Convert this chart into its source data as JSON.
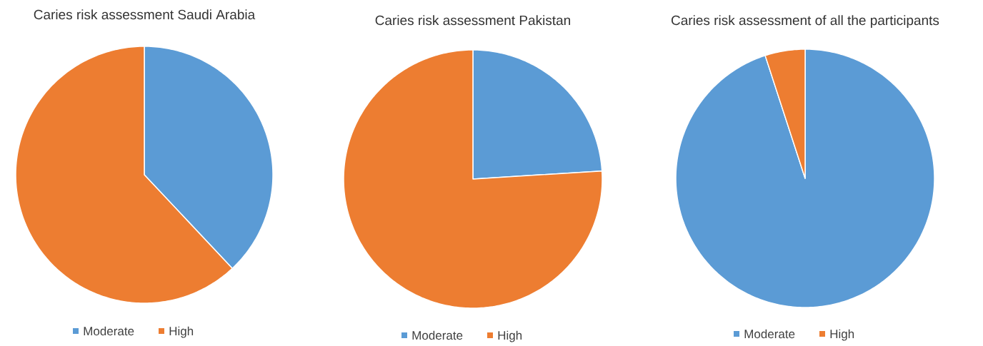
{
  "chart_data": [
    {
      "type": "pie",
      "title": "Caries risk assessment Saudi Arabia",
      "categories": [
        "Moderate",
        "High"
      ],
      "values": [
        38,
        62
      ],
      "colors": [
        "#5b9bd5",
        "#ed7d31"
      ],
      "legend": "bottom"
    },
    {
      "type": "pie",
      "title": "Caries risk assessment Pakistan",
      "categories": [
        "Moderate",
        "High"
      ],
      "values": [
        24,
        76
      ],
      "colors": [
        "#5b9bd5",
        "#ed7d31"
      ],
      "legend": "bottom"
    },
    {
      "type": "pie",
      "title": "Caries risk assessment of all the participants",
      "categories": [
        "Moderate",
        "High"
      ],
      "values": [
        95,
        5
      ],
      "colors": [
        "#5b9bd5",
        "#ed7d31"
      ],
      "legend": "bottom"
    }
  ]
}
